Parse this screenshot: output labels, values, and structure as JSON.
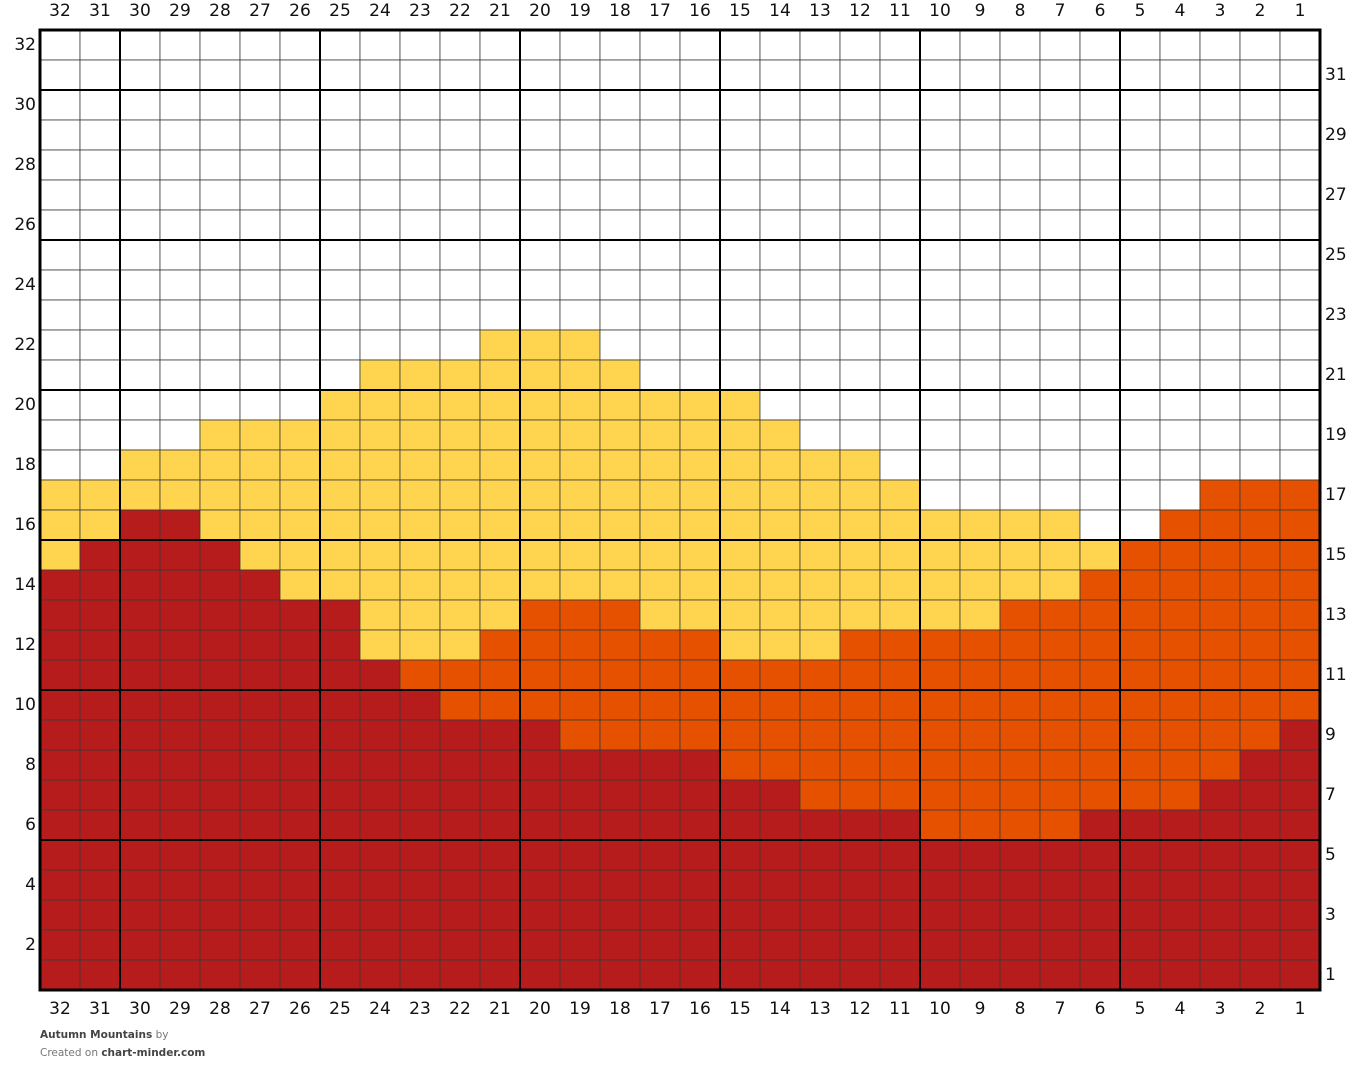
{
  "title": "Autumn Mountains",
  "by": "by",
  "created_on": "Created on",
  "site": "chart-minder.com",
  "column_labels": [
    32,
    31,
    30,
    29,
    28,
    27,
    26,
    25,
    24,
    23,
    22,
    21,
    20,
    19,
    18,
    17,
    16,
    15,
    14,
    13,
    12,
    11,
    10,
    9,
    8,
    7,
    6,
    5,
    4,
    3,
    2,
    1
  ],
  "row_labels": [
    32,
    31,
    30,
    29,
    28,
    27,
    26,
    25,
    24,
    23,
    22,
    21,
    20,
    19,
    18,
    17,
    16,
    15,
    14,
    13,
    12,
    11,
    10,
    9,
    8,
    7,
    6,
    5,
    4,
    3,
    2,
    1
  ],
  "grid": {
    "palette": [
      "#ffffff",
      "#ffd54f",
      "#e65100",
      "#b71c1c"
    ],
    "rows": [
      "00000000000000000000000000000000",
      "00000000000000000000000000000000",
      "00000000000000000000000000000000",
      "00000000000000000000000000000000",
      "00000000000000000000000000000000",
      "00000000000000000000000000000000",
      "00000000000000000000000000000000",
      "00000000000000000000000000000000",
      "00000000000000000000000000000000",
      "00000000000000000000000000000000",
      "00000000000111000000000000000000",
      "00000000111111100000000000000000",
      "00000001111111111100000000000000",
      "00001111111111111110000000000000",
      "00111111111111111111100000000000",
      "11111111111111111111110000000222",
      "11331111111111111111111111002222",
      "13333111111111111111111111122222",
      "33333311111111111111111111222222",
      "33333333111122211111111122222222",
      "33333333111222222111222222222222",
      "33333333322222222222222222222222",
      "33333333332222222222222222222222",
      "33333333333332222222222222222223",
      "33333333333333333222222222222233",
      "33333333333333333332222222222333",
      "33333333333333333333332222333333",
      "33333333333333333333333333333333",
      "33333333333333333333333333333333",
      "33333333333333333333333333333333",
      "33333333333333333333333333333333",
      "33333333333333333333333333333333"
    ]
  }
}
